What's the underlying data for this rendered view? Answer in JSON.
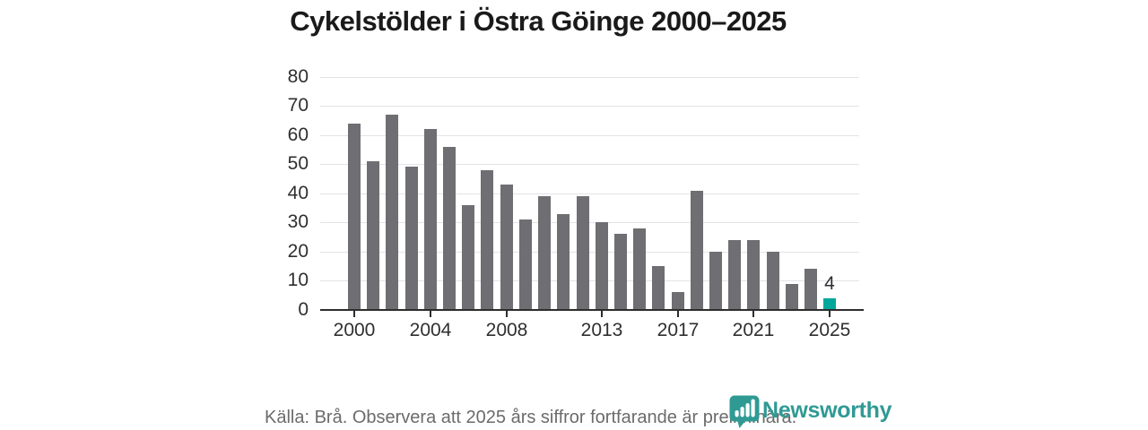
{
  "title": "Cykelstölder i Östra Göinge 2000–2025",
  "chart_data": {
    "type": "bar",
    "title": "Cykelstölder i Östra Göinge 2000–2025",
    "categories": [
      "2000",
      "2001",
      "2002",
      "2003",
      "2004",
      "2005",
      "2006",
      "2007",
      "2008",
      "2009",
      "2010",
      "2011",
      "2012",
      "2013",
      "2014",
      "2015",
      "2016",
      "2017",
      "2018",
      "2019",
      "2020",
      "2021",
      "2022",
      "2023",
      "2024",
      "2025"
    ],
    "values": [
      64,
      51,
      67,
      49,
      62,
      56,
      36,
      48,
      43,
      31,
      39,
      33,
      39,
      30,
      26,
      28,
      15,
      6,
      41,
      20,
      24,
      24,
      20,
      9,
      14,
      4
    ],
    "ylim": [
      0,
      80
    ],
    "y_ticks": [
      0,
      10,
      20,
      30,
      40,
      50,
      60,
      70,
      80
    ],
    "x_tick_labels": [
      "2000",
      "2004",
      "2008",
      "2013",
      "2017",
      "2021",
      "2025"
    ],
    "grid": true,
    "legend_position": "none",
    "bar_color": "#6f6e73",
    "highlight": {
      "category": "2025",
      "value": 4,
      "data_label": "4",
      "color": "#02a79b"
    }
  },
  "footer": {
    "source_text": "Källa: Brå. Observera att 2025 års siffror fortfarande är preliminära."
  },
  "logo": {
    "text": "Newsworthy",
    "icon": "newsworthy-pin-barchart-icon",
    "color": "#2f9a94"
  }
}
